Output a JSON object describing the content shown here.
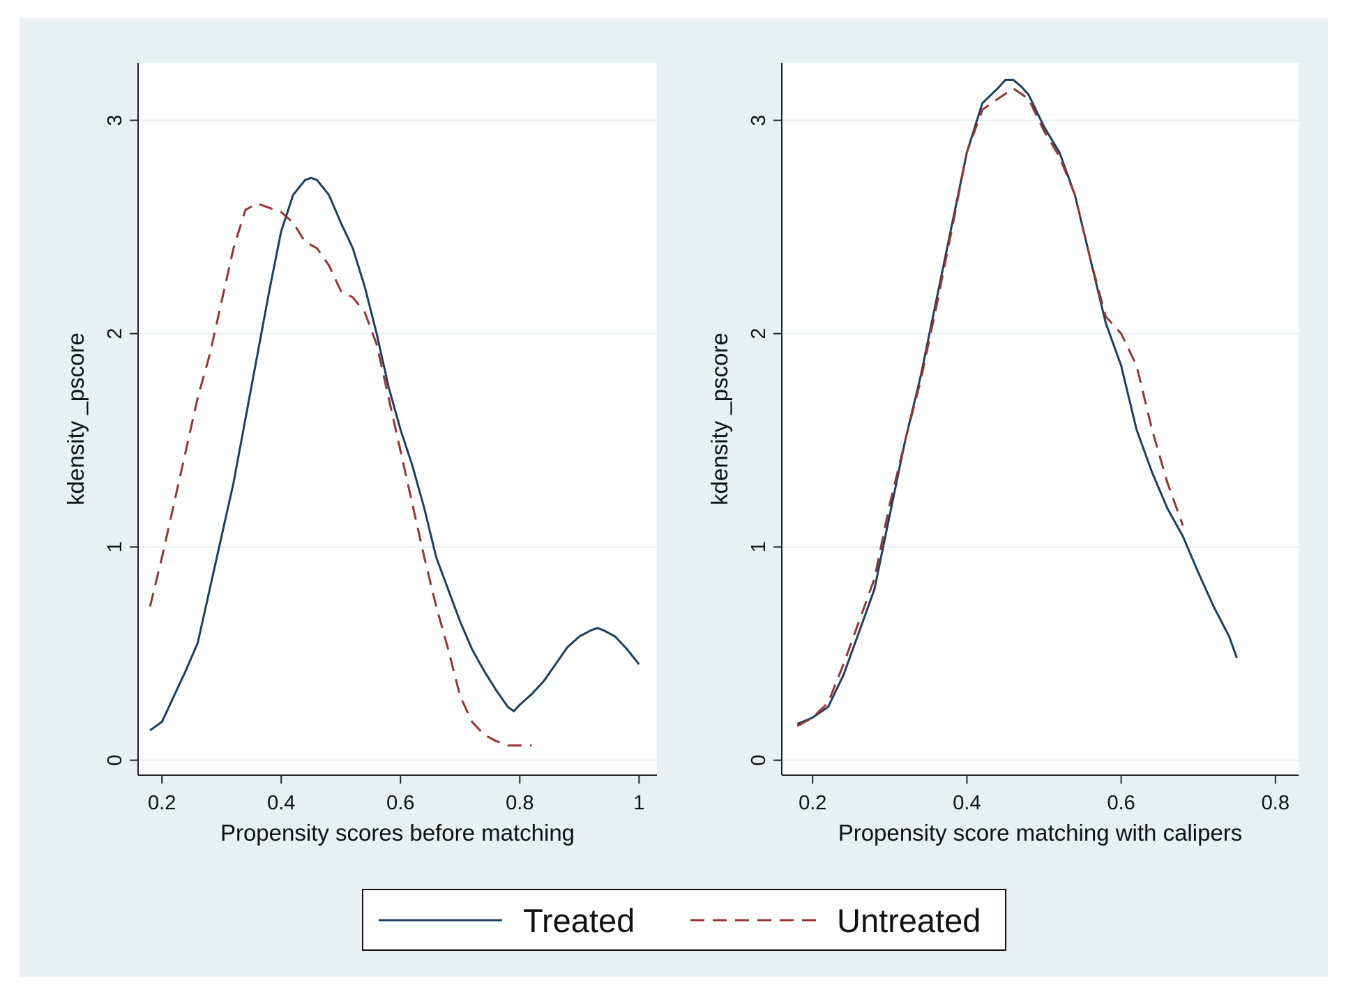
{
  "colors": {
    "figure_bg": "#e8f0f1",
    "plot_bg": "#ffffff",
    "grid": "#e3eef0",
    "axis": "#222222",
    "treated": "#1c3f5e",
    "untreated": "#993333"
  },
  "legend": {
    "treated_label": "Treated",
    "untreated_label": "Untreated"
  },
  "chart_data": [
    {
      "type": "line",
      "title": "",
      "xlabel": "Propensity scores before matching",
      "ylabel": "kdensity _pscore",
      "xlim": [
        0.16,
        1.03
      ],
      "ylim": [
        -0.07,
        3.27
      ],
      "xticks": [
        0.2,
        0.4,
        0.6,
        0.8,
        1
      ],
      "xtick_labels": [
        "0.2",
        "0.4",
        "0.6",
        "0.8",
        "1"
      ],
      "yticks": [
        0,
        1,
        2,
        3
      ],
      "ytick_labels": [
        "0",
        "1",
        "2",
        "3"
      ],
      "grid": true,
      "series": [
        {
          "name": "Treated",
          "style": "solid",
          "x": [
            0.18,
            0.2,
            0.22,
            0.24,
            0.26,
            0.28,
            0.3,
            0.32,
            0.34,
            0.36,
            0.38,
            0.4,
            0.42,
            0.44,
            0.45,
            0.46,
            0.48,
            0.5,
            0.52,
            0.54,
            0.56,
            0.58,
            0.6,
            0.62,
            0.64,
            0.66,
            0.68,
            0.7,
            0.72,
            0.74,
            0.76,
            0.78,
            0.79,
            0.8,
            0.82,
            0.84,
            0.86,
            0.88,
            0.9,
            0.92,
            0.93,
            0.94,
            0.96,
            0.98,
            1.0
          ],
          "y": [
            0.14,
            0.18,
            0.3,
            0.42,
            0.55,
            0.8,
            1.05,
            1.3,
            1.6,
            1.9,
            2.2,
            2.48,
            2.65,
            2.72,
            2.73,
            2.72,
            2.65,
            2.52,
            2.4,
            2.22,
            2.0,
            1.75,
            1.55,
            1.38,
            1.18,
            0.95,
            0.8,
            0.65,
            0.52,
            0.42,
            0.33,
            0.25,
            0.23,
            0.26,
            0.31,
            0.37,
            0.45,
            0.53,
            0.58,
            0.61,
            0.62,
            0.61,
            0.58,
            0.52,
            0.45
          ]
        },
        {
          "name": "Untreated",
          "style": "dashed",
          "x": [
            0.18,
            0.2,
            0.22,
            0.24,
            0.26,
            0.28,
            0.3,
            0.32,
            0.34,
            0.36,
            0.38,
            0.4,
            0.42,
            0.44,
            0.46,
            0.48,
            0.5,
            0.52,
            0.54,
            0.56,
            0.58,
            0.6,
            0.62,
            0.64,
            0.66,
            0.68,
            0.7,
            0.72,
            0.74,
            0.76,
            0.78,
            0.8,
            0.82
          ],
          "y": [
            0.72,
            0.95,
            1.2,
            1.45,
            1.7,
            1.9,
            2.15,
            2.4,
            2.58,
            2.61,
            2.59,
            2.57,
            2.52,
            2.43,
            2.4,
            2.32,
            2.2,
            2.17,
            2.1,
            1.95,
            1.7,
            1.45,
            1.2,
            0.95,
            0.72,
            0.52,
            0.3,
            0.18,
            0.12,
            0.09,
            0.07,
            0.07,
            0.07
          ]
        }
      ]
    },
    {
      "type": "line",
      "title": "",
      "xlabel": "Propensity score matching with calipers",
      "ylabel": "kdensity _pscore",
      "xlim": [
        0.16,
        0.83
      ],
      "ylim": [
        -0.07,
        3.27
      ],
      "xticks": [
        0.2,
        0.4,
        0.6,
        0.8
      ],
      "xtick_labels": [
        "0.2",
        "0.4",
        "0.6",
        "0.8"
      ],
      "yticks": [
        0,
        1,
        2,
        3
      ],
      "ytick_labels": [
        "0",
        "1",
        "2",
        "3"
      ],
      "grid": true,
      "series": [
        {
          "name": "Treated",
          "style": "solid",
          "x": [
            0.18,
            0.2,
            0.22,
            0.24,
            0.26,
            0.28,
            0.3,
            0.32,
            0.34,
            0.36,
            0.38,
            0.4,
            0.42,
            0.44,
            0.45,
            0.46,
            0.47,
            0.48,
            0.5,
            0.52,
            0.54,
            0.56,
            0.58,
            0.6,
            0.62,
            0.64,
            0.66,
            0.68,
            0.7,
            0.72,
            0.74,
            0.75
          ],
          "y": [
            0.17,
            0.2,
            0.25,
            0.4,
            0.6,
            0.8,
            1.15,
            1.5,
            1.8,
            2.15,
            2.5,
            2.85,
            3.08,
            3.15,
            3.19,
            3.19,
            3.16,
            3.12,
            2.97,
            2.85,
            2.65,
            2.35,
            2.05,
            1.85,
            1.55,
            1.35,
            1.18,
            1.05,
            0.88,
            0.72,
            0.58,
            0.48
          ]
        },
        {
          "name": "Untreated",
          "style": "dashed",
          "x": [
            0.18,
            0.2,
            0.22,
            0.24,
            0.26,
            0.28,
            0.3,
            0.32,
            0.34,
            0.36,
            0.38,
            0.4,
            0.42,
            0.44,
            0.46,
            0.48,
            0.5,
            0.52,
            0.54,
            0.56,
            0.58,
            0.6,
            0.62,
            0.64,
            0.66,
            0.68
          ],
          "y": [
            0.16,
            0.2,
            0.27,
            0.45,
            0.65,
            0.85,
            1.2,
            1.5,
            1.78,
            2.12,
            2.48,
            2.85,
            3.05,
            3.1,
            3.15,
            3.1,
            2.95,
            2.83,
            2.65,
            2.35,
            2.08,
            2.0,
            1.85,
            1.55,
            1.3,
            1.1
          ]
        }
      ]
    }
  ]
}
